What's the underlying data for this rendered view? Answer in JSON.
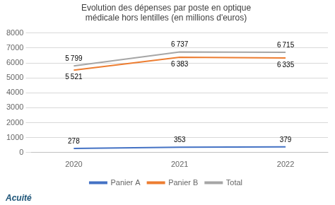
{
  "chart_data": {
    "type": "line",
    "title": "Evolution des dépenses par poste en optique\nmédicale hors lentilles (en millions d'euros)",
    "x": [
      2020,
      2021,
      2022
    ],
    "xlim": [
      2019.6,
      2022.4
    ],
    "xticks": [
      2020,
      2021,
      2022
    ],
    "ylim": [
      0,
      8000
    ],
    "yticks": [
      0,
      1000,
      2000,
      3000,
      4000,
      5000,
      6000,
      7000,
      8000
    ],
    "grid": true,
    "legend": "bottom",
    "data_labels": true,
    "annotations": [
      "Acuité"
    ],
    "series": [
      {
        "name": "Panier A",
        "color": "#4472c4",
        "values": [
          278,
          353,
          379
        ]
      },
      {
        "name": "Panier B",
        "color": "#ed7d31",
        "values": [
          5521,
          6383,
          6335
        ],
        "value_labels": [
          "5 521",
          "6 383",
          "6 335"
        ]
      },
      {
        "name": "Total",
        "color": "#a6a6a6",
        "values": [
          5799,
          6737,
          6715
        ],
        "value_labels": [
          "5 799",
          "6 737",
          "6 715"
        ]
      }
    ]
  }
}
